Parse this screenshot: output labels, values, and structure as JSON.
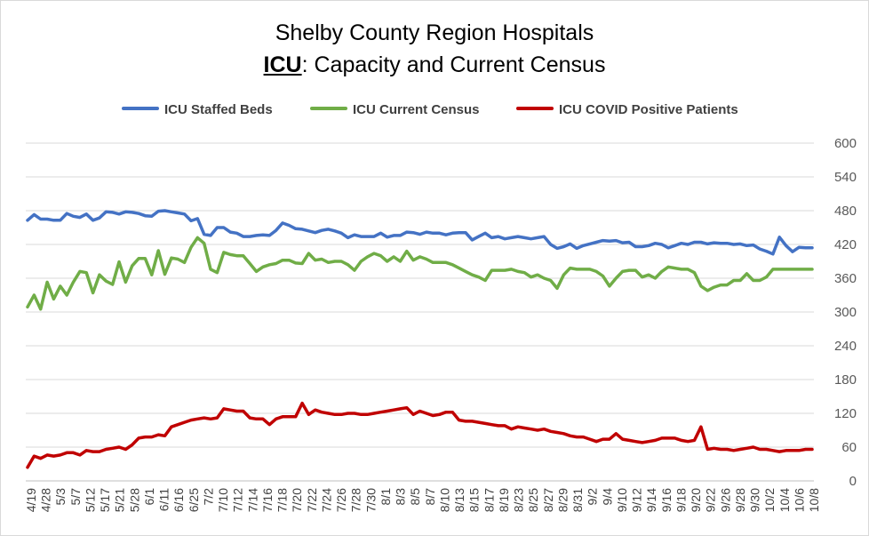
{
  "chart_data": {
    "type": "line",
    "title_line1": "Shelby County Region Hospitals",
    "title_line2_bold": "ICU",
    "title_line2_rest": ": Capacity and Current Census",
    "ylim": [
      0,
      600
    ],
    "yticks": [
      0,
      60,
      120,
      180,
      240,
      300,
      360,
      420,
      480,
      540,
      600
    ],
    "grid": "horizontal",
    "legend_position": "top",
    "x_tick_labels": [
      "4/19",
      "4/28",
      "5/3",
      "5/7",
      "5/12",
      "5/17",
      "5/21",
      "5/28",
      "6/1",
      "6/11",
      "6/16",
      "6/25",
      "7/2",
      "7/10",
      "7/12",
      "7/14",
      "7/16",
      "7/18",
      "7/20",
      "7/22",
      "7/24",
      "7/26",
      "7/28",
      "7/30",
      "8/1",
      "8/3",
      "8/5",
      "8/7",
      "8/10",
      "8/13",
      "8/15",
      "8/17",
      "8/19",
      "8/23",
      "8/25",
      "8/27",
      "8/29",
      "8/31",
      "9/2",
      "9/4",
      "9/10",
      "9/12",
      "9/14",
      "9/16",
      "9/18",
      "9/20",
      "9/22",
      "9/26",
      "9/28",
      "9/30",
      "10/2",
      "10/4",
      "10/6",
      "10/8"
    ],
    "series": [
      {
        "name": "ICU Staffed Beds",
        "color": "#4472C4",
        "values": [
          463,
          473,
          465,
          465,
          463,
          463,
          475,
          470,
          468,
          474,
          463,
          467,
          478,
          477,
          474,
          478,
          477,
          475,
          471,
          470,
          479,
          480,
          478,
          476,
          474,
          462,
          466,
          438,
          436,
          450,
          450,
          442,
          440,
          434,
          434,
          436,
          437,
          436,
          445,
          458,
          454,
          448,
          447,
          444,
          441,
          445,
          447,
          444,
          440,
          432,
          437,
          434,
          434,
          434,
          440,
          433,
          436,
          436,
          442,
          441,
          438,
          442,
          440,
          440,
          437,
          440,
          441,
          441,
          428,
          434,
          440,
          432,
          434,
          430,
          432,
          434,
          432,
          430,
          432,
          434,
          420,
          413,
          416,
          421,
          413,
          418,
          421,
          424,
          427,
          426,
          427,
          423,
          424,
          416,
          416,
          418,
          422,
          420,
          414,
          418,
          422,
          420,
          424,
          424,
          421,
          423,
          422,
          422,
          420,
          421,
          418,
          419,
          412,
          408,
          403,
          433,
          418,
          407,
          415,
          414,
          414
        ]
      },
      {
        "name": "ICU Current Census",
        "color": "#70AD47",
        "values": [
          309,
          330,
          305,
          353,
          323,
          346,
          330,
          353,
          372,
          370,
          334,
          366,
          355,
          349,
          389,
          353,
          382,
          395,
          395,
          366,
          409,
          367,
          396,
          394,
          388,
          415,
          432,
          422,
          376,
          370,
          406,
          402,
          400,
          400,
          386,
          372,
          380,
          384,
          386,
          392,
          392,
          387,
          386,
          404,
          392,
          394,
          388,
          390,
          390,
          384,
          374,
          390,
          398,
          404,
          400,
          390,
          398,
          390,
          408,
          392,
          398,
          394,
          388,
          388,
          388,
          384,
          378,
          372,
          366,
          362,
          356,
          374,
          374,
          374,
          376,
          372,
          370,
          362,
          366,
          360,
          356,
          342,
          366,
          378,
          376,
          376,
          376,
          372,
          364,
          346,
          360,
          372,
          374,
          374,
          362,
          366,
          360,
          372,
          380,
          378,
          376,
          376,
          370,
          346,
          338,
          344,
          348,
          348,
          356,
          356,
          368,
          356,
          356,
          362,
          376,
          376,
          376,
          376,
          376,
          376,
          376
        ]
      },
      {
        "name": "ICU COVID Positive Patients",
        "color": "#C00000",
        "values": [
          24,
          44,
          40,
          46,
          44,
          46,
          50,
          50,
          46,
          54,
          52,
          52,
          56,
          58,
          60,
          56,
          64,
          76,
          78,
          78,
          82,
          80,
          96,
          100,
          104,
          108,
          110,
          112,
          110,
          112,
          128,
          126,
          124,
          124,
          112,
          110,
          110,
          100,
          110,
          114,
          114,
          114,
          138,
          118,
          126,
          122,
          120,
          118,
          118,
          120,
          120,
          118,
          118,
          120,
          122,
          124,
          126,
          128,
          130,
          118,
          124,
          120,
          116,
          118,
          122,
          122,
          108,
          106,
          106,
          104,
          102,
          100,
          98,
          98,
          92,
          96,
          94,
          92,
          90,
          92,
          88,
          86,
          84,
          80,
          78,
          78,
          74,
          70,
          74,
          74,
          84,
          74,
          72,
          70,
          68,
          70,
          72,
          76,
          76,
          76,
          72,
          70,
          72,
          96,
          56,
          58,
          56,
          56,
          54,
          56,
          58,
          60,
          56,
          56,
          54,
          52,
          54,
          54,
          54,
          56,
          56
        ]
      }
    ]
  }
}
